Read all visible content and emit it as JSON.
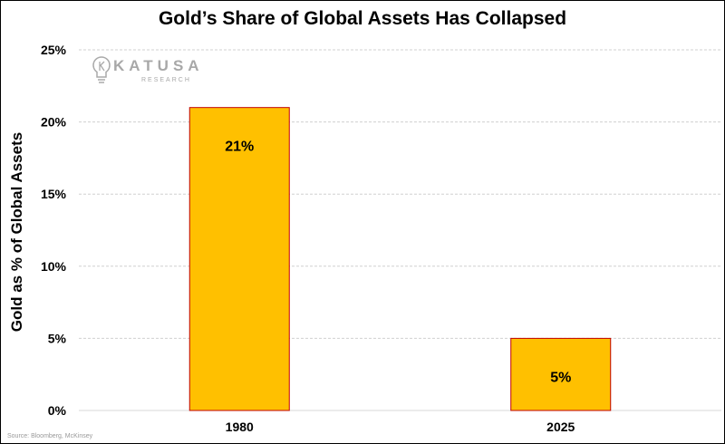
{
  "chart_data": {
    "type": "bar",
    "title": "Gold’s Share of Global Assets Has Collapsed",
    "xlabel": "",
    "ylabel": "Gold as % of Global Assets",
    "categories": [
      "1980",
      "2025"
    ],
    "values": [
      21,
      5
    ],
    "data_labels": [
      "21%",
      "5%"
    ],
    "ylim": [
      0,
      25
    ],
    "yticks": [
      0,
      5,
      10,
      15,
      20,
      25
    ],
    "ytick_labels": [
      "0%",
      "5%",
      "10%",
      "15%",
      "20%",
      "25%"
    ],
    "grid": true,
    "bar_color": "#FFC000",
    "bar_edge_color": "#C00000",
    "source": "Source: Bloomberg, McKinsey"
  },
  "logo": {
    "name": "KATUSA",
    "sub": "RESEARCH"
  }
}
